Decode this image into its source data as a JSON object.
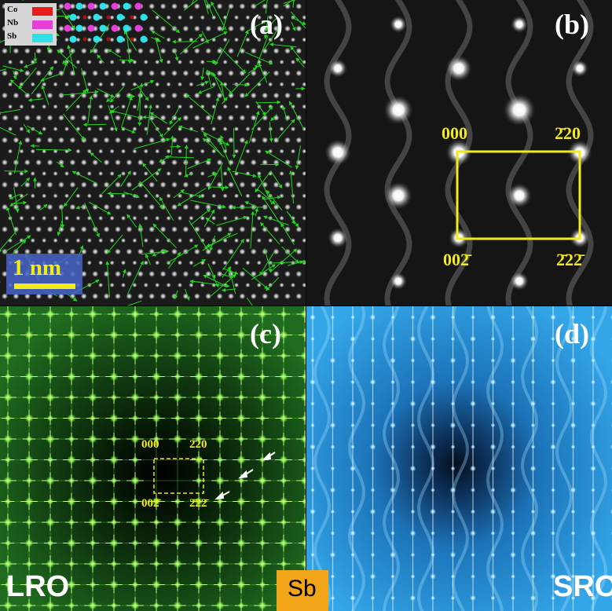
{
  "panels": {
    "a": {
      "label": "(a)",
      "legend": [
        {
          "text": "Co",
          "color": "#e81b1b"
        },
        {
          "text": "Nb",
          "color": "#e43fd8"
        },
        {
          "text": "Sb",
          "color": "#2ee0e8"
        }
      ],
      "scale_bar": "1 nm"
    },
    "b": {
      "label": "(b)",
      "indices": {
        "top_left": "000",
        "top_right": "2̄20",
        "bottom_left": "002̄",
        "bottom_right": "2̄22̄"
      }
    },
    "c": {
      "label": "(c)",
      "indices": {
        "top_left": "000",
        "top_right": "2̄20",
        "bottom_left": "002̄",
        "bottom_right": "2̄22̄"
      },
      "caption": "LRO"
    },
    "d": {
      "label": "(d)",
      "caption": "SRO"
    }
  },
  "center_tag": "Sb",
  "colors": {
    "annotation_yellow": "#f2ea1a",
    "arrow_green": "#22d61e",
    "sb_tag": "#f3a51a"
  }
}
